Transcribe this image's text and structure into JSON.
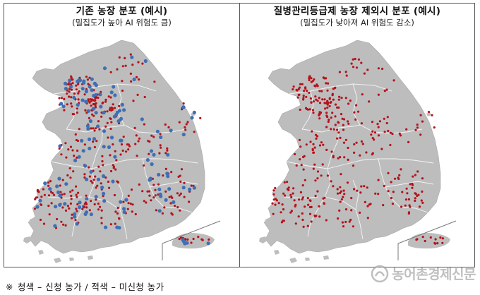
{
  "panels": [
    {
      "title": "기존 농장 분포 (예시)",
      "subtitle": "(밀집도가 높아 AI 위험도 큼)"
    },
    {
      "title": "질병관리등급제 농장 제외시 분포 (예시)",
      "subtitle": "(밀집도가 낮아져 AI 위험도 감소)"
    }
  ],
  "legend": {
    "mark": "※",
    "text": "청색 – 신청 농가 / 적색 – 미신청 농가"
  },
  "watermark": {
    "text": "농어촌경제신문"
  },
  "colors": {
    "land": "#bdbdbd",
    "region_line": "#ffffff",
    "farm_red": "#b5121b",
    "farm_blue": "#3f6fb5",
    "border": "#555555"
  }
}
